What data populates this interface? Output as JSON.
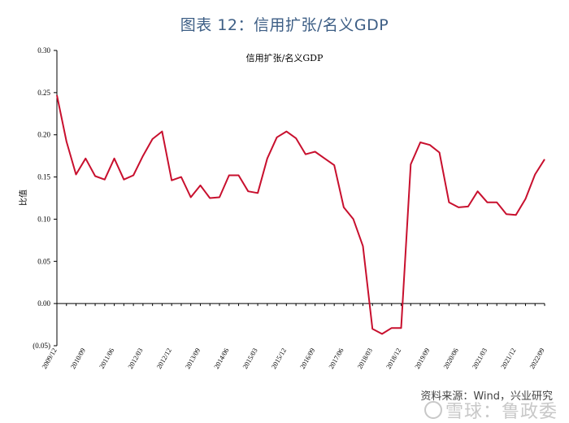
{
  "figure_title": "图表 12：信用扩张/名义GDP",
  "source_note": "资料来源：Wind，兴业研究",
  "watermark": "雪球：鲁政委",
  "chart_data": {
    "type": "line",
    "title": "信用扩张/名义GDP",
    "xlabel": "",
    "ylabel": "比值",
    "ylim": [
      -0.05,
      0.3
    ],
    "yticks": [
      "0.30",
      "0.25",
      "0.20",
      "0.15",
      "0.10",
      "0.05",
      "0.00",
      "(0.05)"
    ],
    "ytick_values": [
      0.3,
      0.25,
      0.2,
      0.15,
      0.1,
      0.05,
      0.0,
      -0.05
    ],
    "grid": false,
    "x_tick_labels": [
      "2009/12",
      "2010/09",
      "2011/06",
      "2012/03",
      "2012/12",
      "2013/09",
      "2014/06",
      "2015/03",
      "2015/12",
      "2016/09",
      "2017/06",
      "2018/03",
      "2018/12",
      "2019/09",
      "2020/06",
      "2021/03",
      "2021/12",
      "2022/09"
    ],
    "color": "#c8102e",
    "series": [
      {
        "x": [
          "2009/12",
          "2010/03",
          "2010/06",
          "2010/09",
          "2010/12",
          "2011/03",
          "2011/06",
          "2011/09",
          "2011/12",
          "2012/03",
          "2012/06",
          "2012/09",
          "2012/12",
          "2013/03",
          "2013/06",
          "2013/09",
          "2013/12",
          "2014/03",
          "2014/06",
          "2014/09",
          "2014/12",
          "2015/03",
          "2015/06",
          "2015/09",
          "2015/12",
          "2016/03",
          "2016/06",
          "2016/09",
          "2016/12",
          "2017/03",
          "2017/06",
          "2017/09",
          "2017/12",
          "2018/03",
          "2018/06",
          "2018/09",
          "2018/12",
          "2019/03",
          "2019/06",
          "2019/09",
          "2019/12",
          "2020/03",
          "2020/06",
          "2020/09",
          "2020/12",
          "2021/03",
          "2021/06",
          "2021/09",
          "2021/12",
          "2022/03",
          "2022/06",
          "2022/09"
        ],
        "values": [
          0.247,
          0.192,
          0.153,
          0.172,
          0.151,
          0.147,
          0.172,
          0.147,
          0.152,
          0.175,
          0.195,
          0.204,
          0.146,
          0.15,
          0.126,
          0.14,
          0.125,
          0.126,
          0.152,
          0.152,
          0.133,
          0.131,
          0.172,
          0.197,
          0.204,
          0.196,
          0.177,
          0.18,
          0.172,
          0.164,
          0.114,
          0.1,
          0.068,
          -0.03,
          -0.036,
          -0.029,
          -0.029,
          0.165,
          0.191,
          0.188,
          0.179,
          0.12,
          0.114,
          0.115,
          0.133,
          0.12,
          0.12,
          0.106,
          0.105,
          0.124,
          0.153,
          0.171
        ]
      }
    ]
  }
}
